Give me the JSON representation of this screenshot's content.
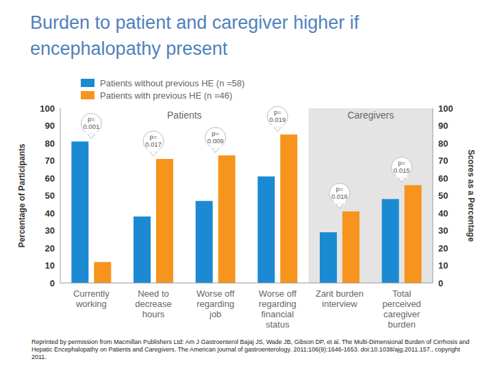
{
  "chart_data": {
    "type": "bar",
    "title": "Burden to patient and caregiver higher if encephalopathy present",
    "y_label": "Percentage of Participants",
    "y2_label": "Scores as a Percentage",
    "categories": [
      "Currently working",
      "Need to decrease hours",
      "Worse off regarding job",
      "Worse off regarding financial status",
      "Zarit burden interview",
      "Total perceived caregiver burden"
    ],
    "series": [
      {
        "name": "Patients without previous HE (n =58)",
        "color": "#1b8ad3",
        "values": [
          81,
          38,
          47,
          61,
          29,
          48
        ]
      },
      {
        "name": "Patients with previous HE (n =46)",
        "color": "#f7941d",
        "values": [
          12,
          71,
          73,
          85,
          41,
          56
        ]
      }
    ],
    "ylim": [
      0,
      100
    ],
    "yticks": [
      0,
      10,
      20,
      30,
      40,
      50,
      60,
      70,
      80,
      90,
      100
    ],
    "y2lim": [
      0,
      100
    ],
    "y2ticks": [
      0,
      10,
      20,
      30,
      40,
      50,
      60,
      70,
      80,
      90,
      100
    ],
    "legend": "top-left",
    "groups": [
      {
        "label": "Patients",
        "categories": [
          "Currently working",
          "Worse off regarding financial status"
        ],
        "shaded": false
      },
      {
        "label": "Caregivers",
        "categories": [
          "Zarit burden interview",
          "Total perceived caregiver burden"
        ],
        "shaded": true
      }
    ],
    "annotations": [
      {
        "category": "Currently working",
        "label": [
          "p=",
          "0.001"
        ]
      },
      {
        "category": "Need to decrease hours",
        "label": [
          "p=",
          "0.017"
        ]
      },
      {
        "category": "Worse off regarding job",
        "label": [
          "p=",
          "0.009"
        ]
      },
      {
        "category": "Worse off regarding financial status",
        "label": [
          "p=",
          "0.019"
        ]
      },
      {
        "category": "Zarit burden interview",
        "label": [
          "p=",
          "0.016"
        ]
      },
      {
        "category": "Total perceived caregiver burden",
        "label": [
          "p=",
          "0.015"
        ]
      }
    ],
    "source": "Reprinted by permission from Macmillan Publishers Ltd: Am J Gastroenterol Bajaj JS, Wade JB, Gibson DP, et al. The Multi-Dimensional Burden of Cirrhosis and Hepatic Encephalopathy on Patients and Caregivers. The American journal of gastroenterology. 2011;106(9):1646-1653. doi:10.1038/ajg.2011.157., copyright 2011."
  }
}
